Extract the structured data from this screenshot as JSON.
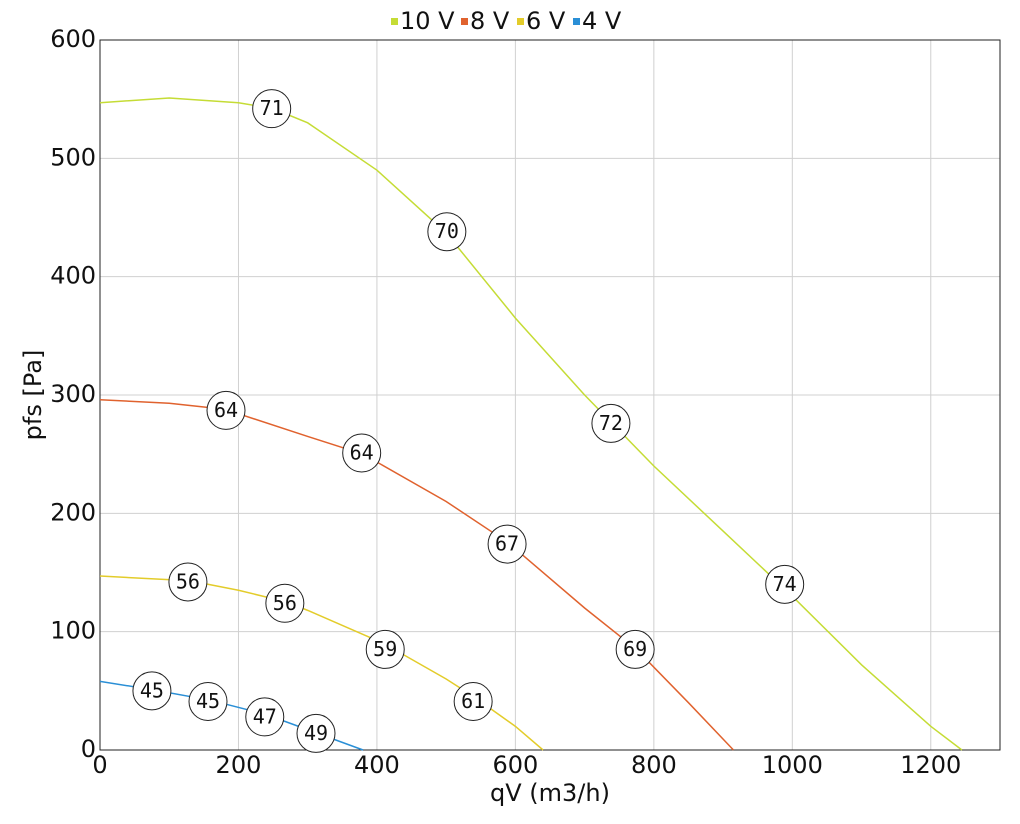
{
  "chart_data": {
    "type": "line",
    "x_label": "qV (m3/h)",
    "y_label": "pfs [Pa]",
    "xlim": [
      0,
      1300
    ],
    "xticks": [
      0,
      200,
      400,
      600,
      800,
      1000,
      1200
    ],
    "ylim": [
      0,
      600
    ],
    "yticks": [
      0,
      100,
      200,
      300,
      400,
      500,
      600
    ],
    "grid": true,
    "legend": "top",
    "series": [
      {
        "name": "10 V",
        "color": "#c5dc35",
        "x": [
          0,
          100,
          200,
          250,
          300,
          400,
          500,
          600,
          700,
          800,
          900,
          1000,
          1100,
          1200,
          1245
        ],
        "values": [
          547,
          551,
          547,
          542,
          530,
          490,
          437,
          365,
          300,
          240,
          185,
          130,
          72,
          20,
          0
        ],
        "annotations": [
          {
            "x": 248,
            "y": 542,
            "text": "71"
          },
          {
            "x": 501,
            "y": 438,
            "text": "70"
          },
          {
            "x": 738,
            "y": 276,
            "text": "72"
          },
          {
            "x": 989,
            "y": 140,
            "text": "74"
          }
        ]
      },
      {
        "name": "8 V",
        "color": "#e0622e",
        "x": [
          0,
          100,
          180,
          300,
          380,
          500,
          590,
          700,
          775,
          850,
          915
        ],
        "values": [
          296,
          293,
          288,
          265,
          250,
          210,
          175,
          120,
          85,
          40,
          0
        ],
        "annotations": [
          {
            "x": 182,
            "y": 287,
            "text": "64"
          },
          {
            "x": 378,
            "y": 251,
            "text": "64"
          },
          {
            "x": 588,
            "y": 174,
            "text": "67"
          },
          {
            "x": 773,
            "y": 85,
            "text": "69"
          }
        ]
      },
      {
        "name": "6 V",
        "color": "#e3cc2a",
        "x": [
          0,
          130,
          200,
          270,
          300,
          410,
          500,
          540,
          600,
          640
        ],
        "values": [
          147,
          143,
          135,
          125,
          118,
          90,
          60,
          45,
          20,
          0
        ],
        "annotations": [
          {
            "x": 127,
            "y": 142,
            "text": "56"
          },
          {
            "x": 267,
            "y": 124,
            "text": "56"
          },
          {
            "x": 412,
            "y": 85,
            "text": "59"
          },
          {
            "x": 539,
            "y": 41,
            "text": "61"
          }
        ]
      },
      {
        "name": "4 V",
        "color": "#2a8fd6",
        "x": [
          0,
          75,
          160,
          240,
          310,
          380
        ],
        "values": [
          58,
          51,
          42,
          30,
          15,
          0
        ],
        "annotations": [
          {
            "x": 75,
            "y": 50,
            "text": "45"
          },
          {
            "x": 156,
            "y": 41,
            "text": "45"
          },
          {
            "x": 238,
            "y": 28,
            "text": "47"
          },
          {
            "x": 312,
            "y": 14,
            "text": "49"
          }
        ]
      }
    ]
  }
}
